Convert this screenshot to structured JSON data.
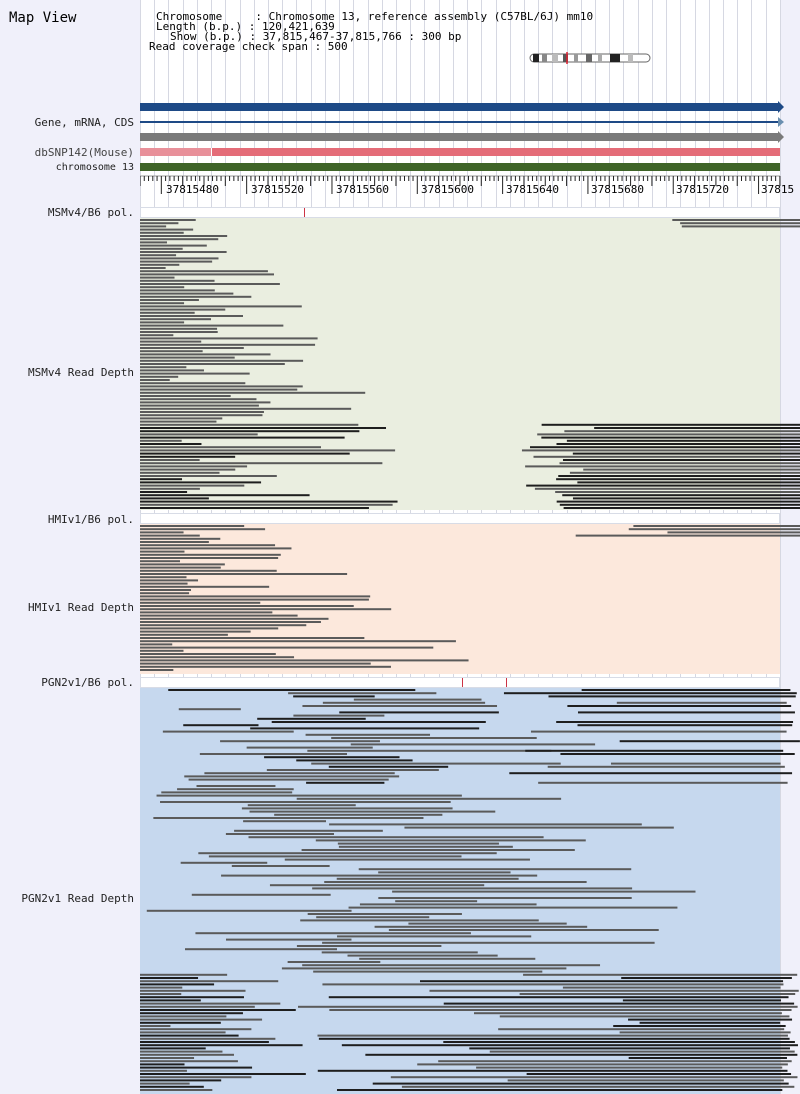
{
  "app": {
    "title": "Map View"
  },
  "info": {
    "chromosome": "Chromosome     : Chromosome 13, reference assembly (C57BL/6J) mm10",
    "length": "Length (b.p.) : 120,421,639",
    "show": "Show (b.p.) : 37,815,467-37,815,766 : 300 bp",
    "coverage": "Read coverage check span : 500"
  },
  "tracks": {
    "gene": "Gene, mRNA, CDS",
    "dbsnp": "dbSNP142(Mouse)",
    "chromosome": "chromosome 13",
    "msm_pol": "MSMv4/B6 pol.",
    "msm_depth": "MSMv4 Read Depth",
    "hmi_pol": "HMIv1/B6 pol.",
    "hmi_depth": "HMIv1 Read Depth",
    "pgn_pol": "PGN2v1/B6 pol.",
    "pgn_depth": "PGN2v1 Read Depth"
  },
  "ruler": {
    "ticks": [
      "37815480",
      "37815520",
      "37815560",
      "37815600",
      "37815640",
      "37815680",
      "37815720",
      "37815"
    ]
  },
  "colors": {
    "gene_bar": "#1e4a86",
    "cds_bar": "#7a7a7a",
    "snp_bar": "#e46c78",
    "chrom_bar": "#3f6428",
    "msm_bg": "#eaeee0",
    "hmi_bg": "#fce8dc",
    "pgn_bg": "#c6d8ee",
    "read": "#5a5a5a",
    "read_dark": "#1e1e1e",
    "pol_mark": "#cc3344"
  }
}
